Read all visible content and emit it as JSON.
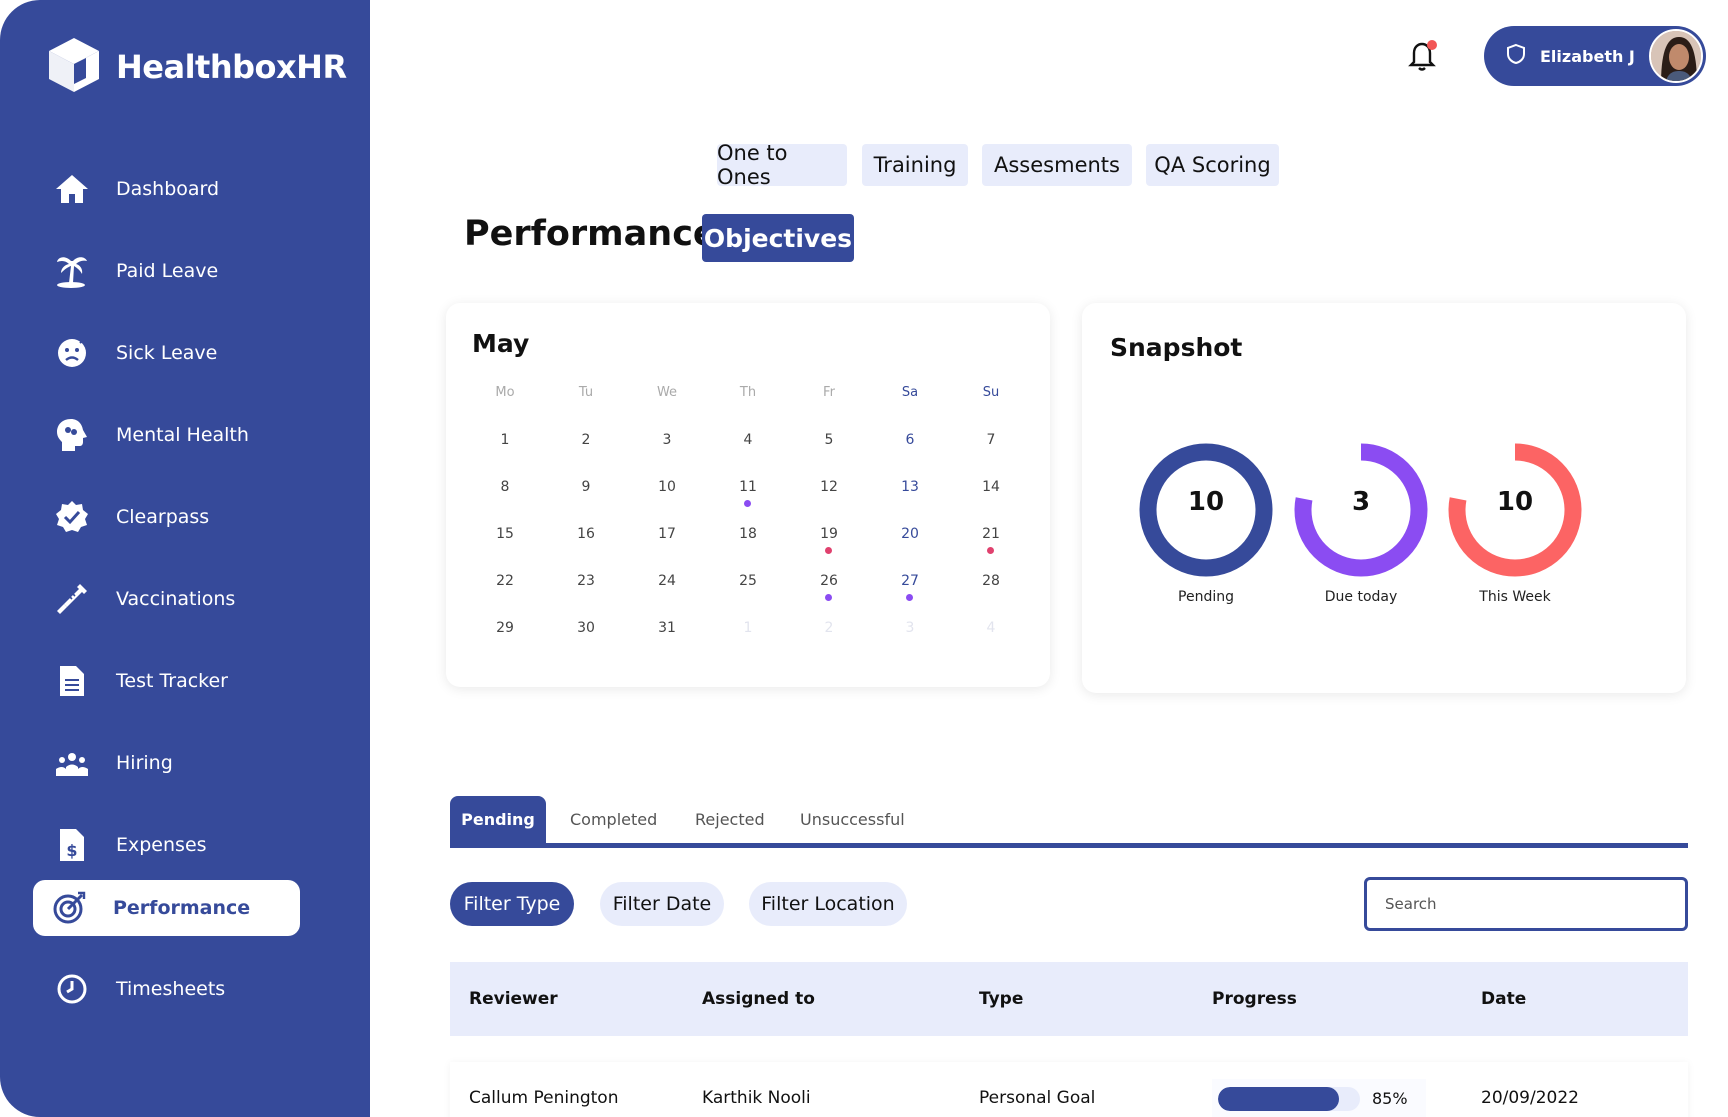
{
  "app": {
    "name": "HealthboxHR"
  },
  "colors": {
    "primary": "#364a9a",
    "light": "#e8ecfb",
    "purple": "#8b4cf2",
    "coral": "#fc6464",
    "red_dot": "#e0416e"
  },
  "sidebar": {
    "items": [
      {
        "label": "Dashboard",
        "icon": "home-icon"
      },
      {
        "label": "Paid Leave",
        "icon": "palm-tree-icon"
      },
      {
        "label": "Sick Leave",
        "icon": "sick-face-icon"
      },
      {
        "label": "Mental Health",
        "icon": "brain-head-icon"
      },
      {
        "label": "Clearpass",
        "icon": "badge-check-icon"
      },
      {
        "label": "Vaccinations",
        "icon": "syringe-icon"
      },
      {
        "label": "Test Tracker",
        "icon": "document-icon"
      },
      {
        "label": "Hiring",
        "icon": "people-icon"
      },
      {
        "label": "Expenses",
        "icon": "receipt-dollar-icon"
      },
      {
        "label": "Performance",
        "icon": "target-icon",
        "active": true
      },
      {
        "label": "Timesheets",
        "icon": "clock-icon"
      }
    ]
  },
  "header": {
    "user_name": "Elizabeth J",
    "notification_count_indicator": true
  },
  "top_tabs": [
    "One to Ones",
    "Training",
    "Assesments",
    "QA Scoring"
  ],
  "page": {
    "title": "Performance/",
    "section": "Objectives"
  },
  "calendar": {
    "month": "May",
    "weekdays": [
      "Mo",
      "Tu",
      "We",
      "Th",
      "Fr",
      "Sa",
      "Su"
    ],
    "weeks": [
      [
        "1",
        "2",
        "3",
        "4",
        "5",
        "6",
        "7"
      ],
      [
        "8",
        "9",
        "10",
        "11",
        "12",
        "13",
        "14"
      ],
      [
        "15",
        "16",
        "17",
        "18",
        "19",
        "20",
        "21"
      ],
      [
        "22",
        "23",
        "24",
        "25",
        "26",
        "27",
        "28"
      ],
      [
        "29",
        "30",
        "31",
        "1",
        "2",
        "3",
        "4"
      ]
    ],
    "event_days": [
      {
        "day": "11",
        "color": "purple"
      },
      {
        "day": "19",
        "color": "red"
      },
      {
        "day": "21",
        "color": "red"
      },
      {
        "day": "26",
        "color": "purple"
      },
      {
        "day": "27",
        "color": "purple"
      }
    ]
  },
  "snapshot": {
    "title": "Snapshot",
    "rings": [
      {
        "value": "10",
        "label": "Pending",
        "color": "#364a9a",
        "fill": 1.0
      },
      {
        "value": "3",
        "label": "Due today",
        "color": "#8b4cf2",
        "fill": 0.78
      },
      {
        "value": "10",
        "label": "This Week",
        "color": "#fc6464",
        "fill": 0.78
      }
    ]
  },
  "status_tabs": [
    "Pending",
    "Completed",
    "Rejected",
    "Unsuccessful"
  ],
  "filters": [
    "Filter Type",
    "Filter Date",
    "Filter Location"
  ],
  "search": {
    "placeholder": "Search"
  },
  "table": {
    "headers": [
      "Reviewer",
      "Assigned to",
      "Type",
      "Progress",
      "Date"
    ],
    "rows": [
      {
        "reviewer": "Callum Penington",
        "assigned_to": "Karthik Nooli",
        "type": "Personal Goal",
        "progress": 0.85,
        "progress_label": "85%",
        "date": "20/09/2022"
      }
    ]
  }
}
